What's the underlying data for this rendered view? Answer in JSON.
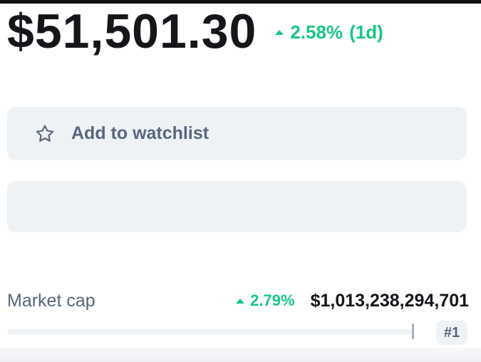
{
  "price": {
    "value": "$51,501.30",
    "change_percent": "2.58%",
    "change_period": "(1d)",
    "change_direction": "up",
    "change_color": "#16c784"
  },
  "watchlist_button": {
    "label": "Add to watchlist",
    "icon": "star-outline-icon"
  },
  "market_cap": {
    "label": "Market cap",
    "change_percent": "2.79%",
    "change_direction": "up",
    "value": "$1,013,238,294,701",
    "rank": "#1"
  }
}
